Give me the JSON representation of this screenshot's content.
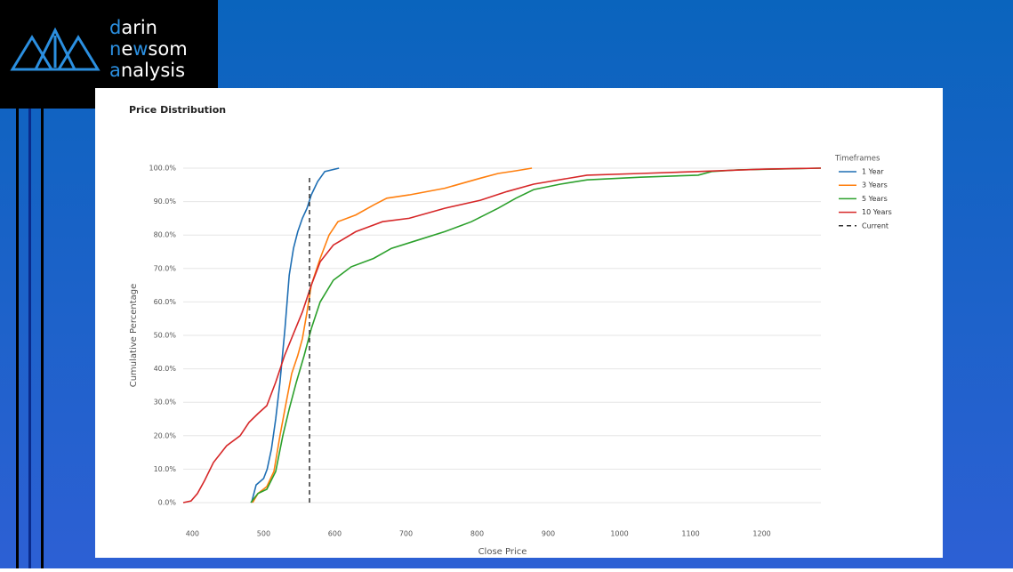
{
  "logo": {
    "lines": [
      [
        "d",
        "arin"
      ],
      [
        "n",
        "e",
        "w",
        "som"
      ],
      [
        "a",
        "nalysis"
      ]
    ]
  },
  "chart_data": {
    "type": "line",
    "title": "Price Distribution",
    "x_label": "Close Price",
    "y_label": "Cumulative Percentage",
    "legend_title": "Timeframes",
    "legend": "right",
    "grid": true,
    "xlim": [
      387,
      1283
    ],
    "xticks": [
      400,
      500,
      600,
      700,
      800,
      900,
      1000,
      1100,
      1200
    ],
    "ylim": [
      0,
      100
    ],
    "yticks": [
      {
        "value": 0,
        "label": "0.0%"
      },
      {
        "value": 10,
        "label": "10.0%"
      },
      {
        "value": 20,
        "label": "20.0%"
      },
      {
        "value": 30,
        "label": "30.0%"
      },
      {
        "value": 40,
        "label": "40.0%"
      },
      {
        "value": 50,
        "label": "50.0%"
      },
      {
        "value": 60,
        "label": "60.0%"
      },
      {
        "value": 70,
        "label": "70.0%"
      },
      {
        "value": 80,
        "label": "80.0%"
      },
      {
        "value": 90,
        "label": "90.0%"
      },
      {
        "value": 100,
        "label": "100.0%"
      }
    ],
    "series": [
      {
        "name": "1 Year",
        "color": "#1f6fb4",
        "x": [
          483,
          489.5,
          500,
          505,
          511,
          517,
          523,
          530,
          536,
          542,
          548,
          554.5,
          561,
          567,
          576,
          586,
          606
        ],
        "values": [
          0,
          5.3,
          7.2,
          10,
          16,
          25,
          36,
          52,
          68,
          76,
          81,
          85,
          88,
          92,
          96,
          99,
          100
        ]
      },
      {
        "name": "3 Years",
        "color": "#ff7f0e",
        "x": [
          484.5,
          492,
          504.5,
          514.5,
          523,
          530,
          539.5,
          548,
          554.5,
          561,
          567,
          579.5,
          592,
          604.5,
          629.5,
          654.5,
          673,
          704.5,
          754.5,
          804.5,
          829.5,
          854.5,
          877
        ],
        "values": [
          0,
          2.7,
          4.8,
          9.3,
          20,
          28,
          38.6,
          44,
          49,
          57,
          65,
          73,
          80,
          84,
          86,
          89,
          91,
          92,
          94,
          97,
          98.4,
          99.2,
          100
        ]
      },
      {
        "name": "5 Years",
        "color": "#2ca02c",
        "x": [
          482,
          492,
          504.5,
          517,
          527,
          536,
          546,
          557,
          567,
          579.5,
          598,
          623,
          654.5,
          679.5,
          717,
          754.5,
          792,
          829.5,
          854.5,
          879.5,
          917,
          954.5,
          1029.5,
          1110.5,
          1129.5,
          1167,
          1283
        ],
        "values": [
          0,
          2.7,
          4,
          9.3,
          20,
          28,
          36,
          44,
          52,
          60,
          66.5,
          70.5,
          73,
          76,
          78.5,
          81,
          84,
          88,
          91,
          93.6,
          95.2,
          96.5,
          97.3,
          97.9,
          99,
          99.5,
          100
        ]
      },
      {
        "name": "10 Years",
        "color": "#d62728",
        "x": [
          387,
          398,
          407,
          417,
          429.5,
          448,
          467,
          479.5,
          492,
          504.5,
          517,
          529.5,
          542,
          554.5,
          567,
          579.5,
          598,
          629.5,
          667,
          704.5,
          754.5,
          804.5,
          842,
          879.5,
          954.5,
          1029.5,
          1110.5,
          1204.5,
          1283
        ],
        "values": [
          0,
          0.5,
          2.7,
          6.6,
          12,
          17,
          20,
          24,
          26.6,
          29,
          36,
          44,
          50.5,
          57,
          65,
          72,
          77,
          81,
          84,
          85,
          88,
          90.4,
          93,
          95.2,
          97.9,
          98.4,
          99,
          99.7,
          100
        ]
      },
      {
        "name": "Current",
        "color": "#333333",
        "dash": true,
        "x": [
          564.5,
          564.5
        ],
        "values": [
          0,
          97.9
        ]
      }
    ]
  }
}
